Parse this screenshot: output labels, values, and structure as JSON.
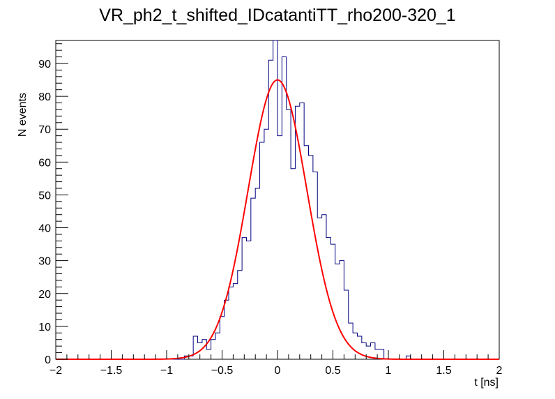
{
  "chart_data": {
    "type": "bar",
    "title": "VR_ph2_t_shifted_IDcatantiTT_rho200-320_1",
    "xlabel": "t [ns]",
    "ylabel": "N events",
    "xlim": [
      -2,
      2
    ],
    "ylim": [
      0,
      97
    ],
    "bin_width": 0.04,
    "x_ticks": [
      -2,
      -1.5,
      -1,
      -0.5,
      0,
      0.5,
      1,
      1.5,
      2
    ],
    "x_tick_labels": [
      "−2",
      "−1.5",
      "−1",
      "−0.5",
      "0",
      "0.5",
      "1",
      "1.5",
      "2"
    ],
    "y_ticks": [
      0,
      10,
      20,
      30,
      40,
      50,
      60,
      70,
      80,
      90
    ],
    "y_tick_labels": [
      "0",
      "10",
      "20",
      "30",
      "40",
      "50",
      "60",
      "70",
      "80",
      "90"
    ],
    "grid": false,
    "series": [
      {
        "name": "histogram",
        "style": "step",
        "color": "#000080",
        "x_start": -1.0,
        "values": [
          0,
          0,
          0,
          0,
          1,
          1,
          7,
          5,
          6,
          3,
          6,
          8,
          13,
          18,
          22,
          23,
          27,
          37,
          36,
          49,
          52,
          66,
          70,
          91,
          97,
          68,
          92,
          76,
          58,
          77,
          78,
          65,
          62,
          57,
          43,
          44,
          37,
          35,
          29,
          30,
          21,
          11,
          8,
          7,
          5,
          4,
          5,
          3,
          3,
          0,
          0,
          0,
          0,
          0,
          1
        ]
      },
      {
        "name": "gaussian-fit",
        "style": "line",
        "color": "#ff0000",
        "amplitude": 85,
        "mean": 0.0,
        "sigma": 0.265
      }
    ]
  }
}
